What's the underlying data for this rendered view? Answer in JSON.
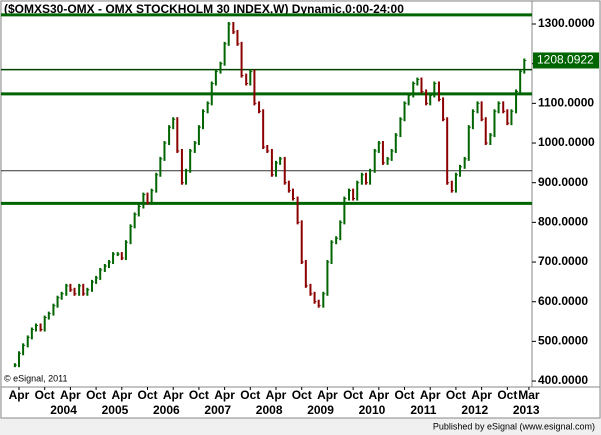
{
  "chart_data": {
    "type": "bar-series",
    "title": "($OMXS30-OMX - OMX STOCKHOLM 30 INDEX,W) Dynamic,0:00-24:00",
    "copyright": "© eSignal, 2011",
    "footer": "Published by eSignal (www.esignal.com)",
    "up_color": "#006400",
    "down_color": "#8b0000",
    "xlim": [
      2002.9,
      2013.23
    ],
    "ylim": [
      385,
      1358
    ],
    "yticks": [
      {
        "value": 400,
        "label": "400.0000"
      },
      {
        "value": 500,
        "label": "500.0000"
      },
      {
        "value": 600,
        "label": "600.0000"
      },
      {
        "value": 700,
        "label": "700.0000"
      },
      {
        "value": 800,
        "label": "800.0000"
      },
      {
        "value": 900,
        "label": "900.0000"
      },
      {
        "value": 1000,
        "label": "1000.0000"
      },
      {
        "value": 1100,
        "label": "1100.0000"
      },
      {
        "value": 1200,
        "label": "1200.0000"
      },
      {
        "value": 1300,
        "label": "1300.0000"
      }
    ],
    "xticks": [
      {
        "value": 2003.25,
        "label": "Apr"
      },
      {
        "value": 2003.75,
        "label": "Oct"
      },
      {
        "value": 2004.25,
        "label": "Apr"
      },
      {
        "value": 2004.75,
        "label": "Oct"
      },
      {
        "value": 2005.25,
        "label": "Apr"
      },
      {
        "value": 2005.75,
        "label": "Oct"
      },
      {
        "value": 2006.25,
        "label": "Apr"
      },
      {
        "value": 2006.75,
        "label": "Oct"
      },
      {
        "value": 2007.25,
        "label": "Apr"
      },
      {
        "value": 2007.75,
        "label": "Oct"
      },
      {
        "value": 2008.25,
        "label": "Apr"
      },
      {
        "value": 2008.75,
        "label": "Oct"
      },
      {
        "value": 2009.25,
        "label": "Apr"
      },
      {
        "value": 2009.75,
        "label": "Oct"
      },
      {
        "value": 2010.25,
        "label": "Apr"
      },
      {
        "value": 2010.75,
        "label": "Oct"
      },
      {
        "value": 2011.25,
        "label": "Apr"
      },
      {
        "value": 2011.75,
        "label": "Oct"
      },
      {
        "value": 2012.25,
        "label": "Apr"
      },
      {
        "value": 2012.75,
        "label": "Oct"
      },
      {
        "value": 2013.17,
        "label": "Mar"
      }
    ],
    "year_ticks": [
      2004,
      2005,
      2006,
      2007,
      2008,
      2009,
      2010,
      2011,
      2012,
      2013
    ],
    "hlines": [
      {
        "value": 1323,
        "color": "#006400",
        "width": 3
      },
      {
        "value": 1185,
        "color": "#004000",
        "width": 1.5
      },
      {
        "value": 1124,
        "color": "#006400",
        "width": 3
      },
      {
        "value": 930,
        "color": "#333333",
        "width": 1
      },
      {
        "value": 848,
        "color": "#006400",
        "width": 3
      }
    ],
    "last": {
      "value": 1208.0922,
      "label": "1208.0922"
    },
    "x": [
      2003.17,
      2003.25,
      2003.33,
      2003.42,
      2003.5,
      2003.58,
      2003.67,
      2003.75,
      2003.83,
      2003.92,
      2004.0,
      2004.08,
      2004.17,
      2004.25,
      2004.33,
      2004.42,
      2004.5,
      2004.58,
      2004.67,
      2004.75,
      2004.83,
      2004.92,
      2005.0,
      2005.08,
      2005.17,
      2005.25,
      2005.33,
      2005.42,
      2005.5,
      2005.58,
      2005.67,
      2005.75,
      2005.83,
      2005.92,
      2006.0,
      2006.08,
      2006.17,
      2006.25,
      2006.33,
      2006.42,
      2006.5,
      2006.58,
      2006.67,
      2006.75,
      2006.83,
      2006.92,
      2007.0,
      2007.08,
      2007.17,
      2007.25,
      2007.33,
      2007.42,
      2007.5,
      2007.58,
      2007.67,
      2007.75,
      2007.83,
      2007.92,
      2008.0,
      2008.08,
      2008.17,
      2008.25,
      2008.33,
      2008.42,
      2008.5,
      2008.58,
      2008.67,
      2008.75,
      2008.83,
      2008.92,
      2009.0,
      2009.08,
      2009.17,
      2009.25,
      2009.33,
      2009.42,
      2009.5,
      2009.58,
      2009.67,
      2009.75,
      2009.83,
      2009.92,
      2010.0,
      2010.08,
      2010.17,
      2010.25,
      2010.33,
      2010.42,
      2010.5,
      2010.58,
      2010.67,
      2010.75,
      2010.83,
      2010.92,
      2011.0,
      2011.08,
      2011.17,
      2011.25,
      2011.33,
      2011.42,
      2011.5,
      2011.58,
      2011.67,
      2011.75,
      2011.83,
      2011.92,
      2012.0,
      2012.08,
      2012.17,
      2012.25,
      2012.33,
      2012.42,
      2012.5,
      2012.58,
      2012.67,
      2012.75,
      2012.83,
      2012.92,
      2013.0,
      2013.08
    ],
    "values": [
      440,
      470,
      490,
      510,
      530,
      540,
      530,
      560,
      570,
      590,
      610,
      620,
      640,
      630,
      620,
      640,
      620,
      630,
      650,
      660,
      680,
      690,
      700,
      720,
      720,
      710,
      750,
      790,
      820,
      840,
      870,
      850,
      880,
      920,
      960,
      1000,
      1040,
      1060,
      980,
      900,
      930,
      980,
      1000,
      1040,
      1080,
      1100,
      1150,
      1180,
      1200,
      1250,
      1300,
      1280,
      1250,
      1170,
      1150,
      1180,
      1100,
      1080,
      990,
      980,
      920,
      950,
      960,
      900,
      880,
      860,
      800,
      700,
      640,
      620,
      600,
      590,
      620,
      700,
      750,
      760,
      800,
      860,
      880,
      860,
      900,
      920,
      900,
      930,
      980,
      1000,
      950,
      960,
      980,
      1020,
      1060,
      1100,
      1120,
      1150,
      1160,
      1130,
      1100,
      1120,
      1150,
      1110,
      1060,
      900,
      880,
      920,
      940,
      960,
      1040,
      1080,
      1100,
      1060,
      1000,
      1020,
      1080,
      1100,
      1080,
      1050,
      1080,
      1130,
      1180,
      1208
    ]
  }
}
